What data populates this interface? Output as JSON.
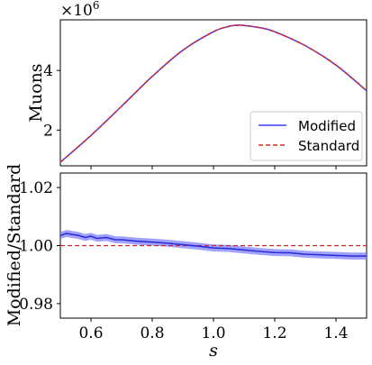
{
  "chart_data": [
    {
      "type": "line",
      "ylabel": "Muons",
      "y_multiplier": "×10",
      "y_multiplier_exp": "6",
      "xlim": [
        0.5,
        1.5
      ],
      "ylim": [
        0.8,
        5.7
      ],
      "yticks": [
        {
          "v": 2,
          "label": "2"
        },
        {
          "v": 4,
          "label": "4"
        }
      ],
      "legend": {
        "placement": "lower-right"
      },
      "colors": {
        "Modified": "#3b3bff",
        "Standard": "#e0201c"
      },
      "x": [
        0.5,
        0.6,
        0.7,
        0.8,
        0.9,
        1.0,
        1.05,
        1.08,
        1.1,
        1.15,
        1.2,
        1.3,
        1.4,
        1.5
      ],
      "series": [
        {
          "name": "Modified",
          "values": [
            0.92,
            1.82,
            2.8,
            3.8,
            4.68,
            5.3,
            5.48,
            5.52,
            5.51,
            5.44,
            5.3,
            4.83,
            4.18,
            3.32
          ]
        },
        {
          "name": "Standard",
          "values": [
            0.92,
            1.82,
            2.8,
            3.8,
            4.68,
            5.3,
            5.48,
            5.52,
            5.51,
            5.44,
            5.3,
            4.83,
            4.18,
            3.32
          ]
        }
      ]
    },
    {
      "type": "line",
      "ylabel": "Modified/Standard",
      "xlabel": "s",
      "xlim": [
        0.5,
        1.5
      ],
      "ylim": [
        0.975,
        1.025
      ],
      "xticks": [
        {
          "v": 0.6,
          "label": "0.6"
        },
        {
          "v": 0.8,
          "label": "0.8"
        },
        {
          "v": 1.0,
          "label": "1.0"
        },
        {
          "v": 1.2,
          "label": "1.2"
        },
        {
          "v": 1.4,
          "label": "1.4"
        }
      ],
      "yticks": [
        {
          "v": 0.98,
          "label": "0.98"
        },
        {
          "v": 1.0,
          "label": "1.00"
        },
        {
          "v": 1.02,
          "label": "1.02"
        }
      ],
      "colors": {
        "ratio": "#2b2bd6",
        "band": "#8080ff",
        "reference": "#e0201c"
      },
      "reference_line": 1.0,
      "band_halfwidth": 0.0012,
      "x": [
        0.5,
        0.52,
        0.54,
        0.56,
        0.58,
        0.6,
        0.62,
        0.65,
        0.68,
        0.7,
        0.75,
        0.8,
        0.85,
        0.9,
        0.95,
        1.0,
        1.05,
        1.1,
        1.15,
        1.2,
        1.25,
        1.3,
        1.35,
        1.4,
        1.45,
        1.5
      ],
      "series": [
        {
          "name": "Modified/Standard",
          "values": [
            1.0035,
            1.0042,
            1.0038,
            1.0035,
            1.0028,
            1.0032,
            1.0025,
            1.0028,
            1.002,
            1.002,
            1.0015,
            1.0012,
            1.0008,
            1.0003,
            0.9998,
            0.9992,
            0.999,
            0.9985,
            0.998,
            0.9976,
            0.9975,
            0.997,
            0.9968,
            0.9966,
            0.9964,
            0.9964
          ]
        }
      ]
    }
  ]
}
